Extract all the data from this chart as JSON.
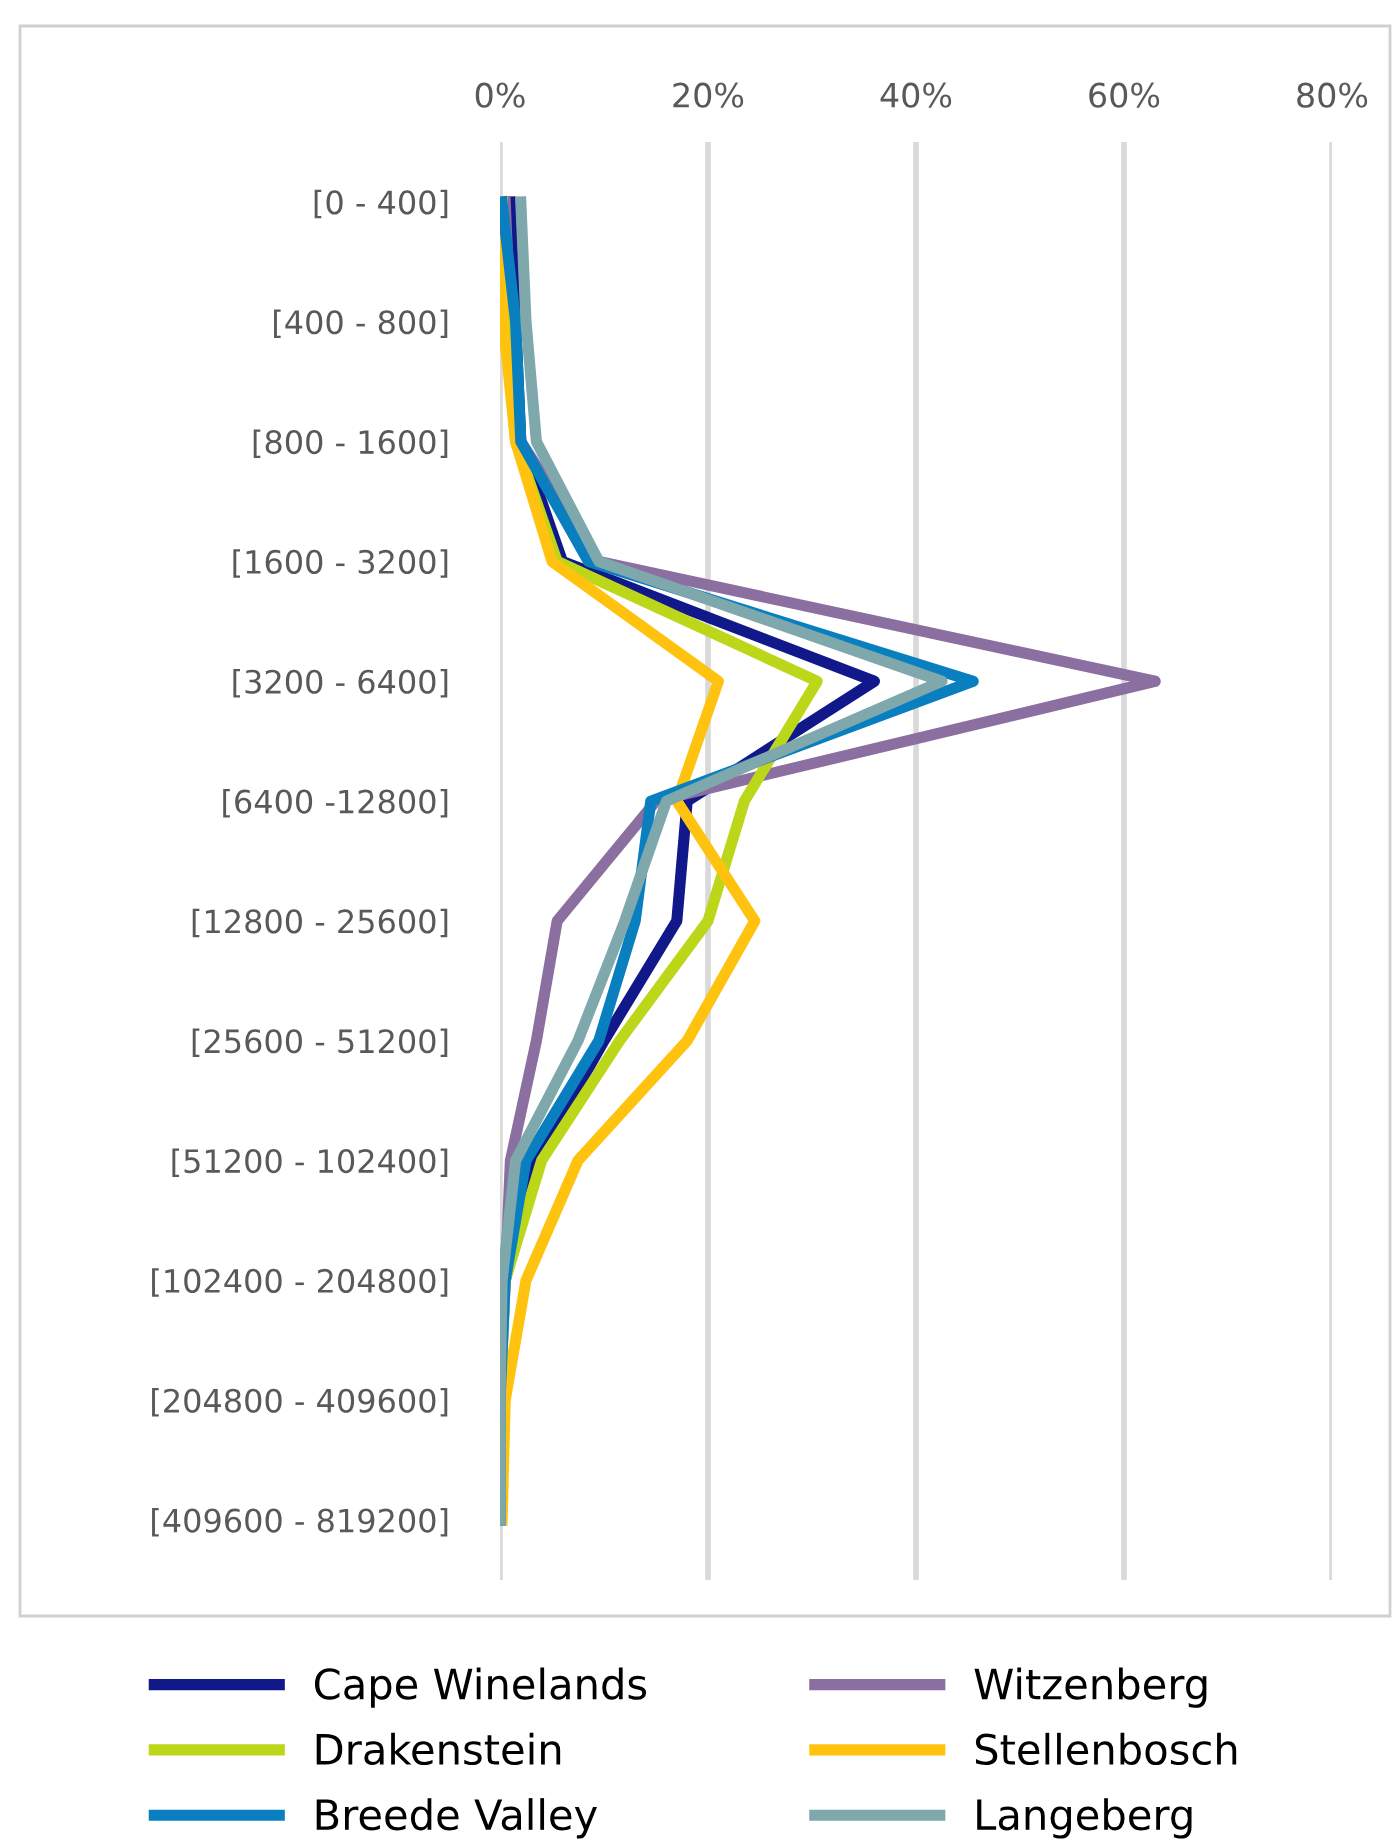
{
  "chart_data": {
    "type": "line",
    "orientation": "horizontal",
    "categories": [
      "[0 - 400]",
      "[400 - 800]",
      "[800 - 1600]",
      "[1600 - 3200]",
      "[3200 - 6400]",
      "[6400 -12800]",
      "[12800 - 25600]",
      "[25600 - 51200]",
      "[51200 - 102400]",
      "[102400 - 204800]",
      "[204800 - 409600]",
      "[409600 - 819200]"
    ],
    "xlim": [
      0,
      80
    ],
    "xticks": [
      {
        "value": 0,
        "label": "0%"
      },
      {
        "value": 20,
        "label": "20%"
      },
      {
        "value": 40,
        "label": "40%"
      },
      {
        "value": 60,
        "label": "60%"
      },
      {
        "value": 80,
        "label": "80%"
      }
    ],
    "grid": "x",
    "legend": "bottom",
    "marker": "none",
    "line_style": "solid",
    "series": [
      {
        "name": "Cape Winelands",
        "color": "#10188a",
        "values": [
          1,
          1.5,
          2,
          6,
          36,
          18,
          17,
          10,
          3.5,
          0.5,
          null,
          null
        ]
      },
      {
        "name": "Witzenberg",
        "color": "#8b6fa0",
        "values": [
          0.5,
          1,
          2,
          9.5,
          63,
          15,
          5.5,
          3.5,
          1,
          0.5,
          0,
          0
        ]
      },
      {
        "name": "Drakenstein",
        "color": "#bcd61a",
        "values": [
          0.2,
          0.5,
          1.5,
          5.5,
          30.5,
          23.5,
          20,
          11.5,
          4,
          0.5,
          0,
          0
        ]
      },
      {
        "name": "Stellenbosch",
        "color": "#ffc20e",
        "values": [
          0.2,
          0.3,
          1.5,
          5,
          21,
          17,
          24.5,
          18,
          7.5,
          2.5,
          0.5,
          0.2
        ]
      },
      {
        "name": "Breede Valley",
        "color": "#0a7fc0",
        "values": [
          0.2,
          1.5,
          2,
          8.5,
          45.5,
          14.5,
          13,
          9.5,
          2.5,
          0.5,
          0,
          0
        ]
      },
      {
        "name": "Langeberg",
        "color": "#7fa8ad",
        "values": [
          2,
          2.5,
          3.5,
          9.5,
          42.5,
          16,
          12,
          7.5,
          1.5,
          0.2,
          0,
          0
        ]
      }
    ]
  }
}
